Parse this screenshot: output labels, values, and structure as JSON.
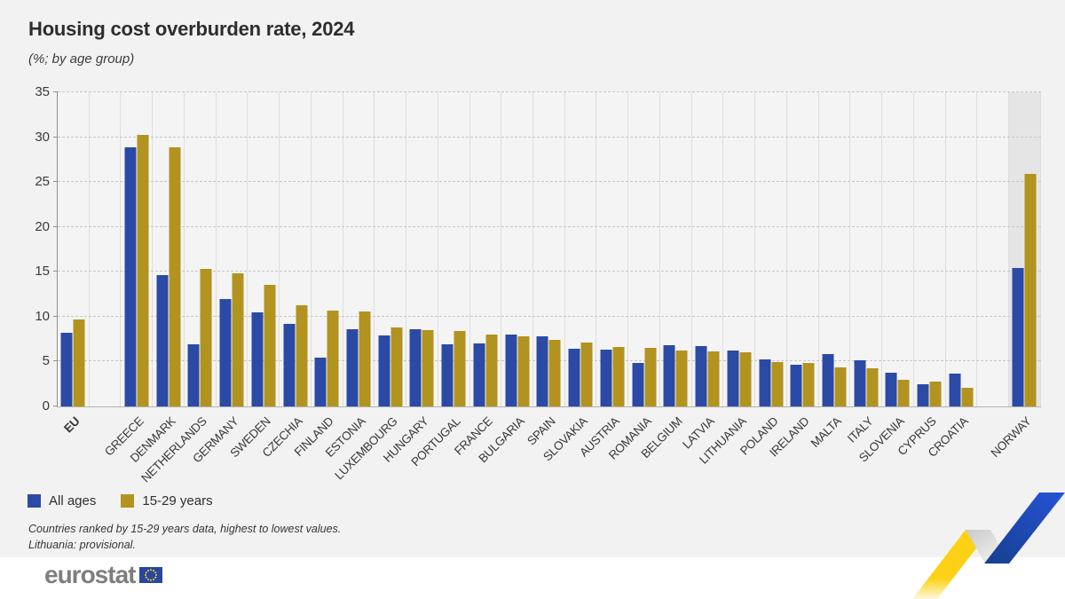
{
  "page": {
    "title": "Housing cost overburden rate, 2024",
    "subtitle": "(%; by age group)"
  },
  "legend": {
    "all_ages_label": "All ages",
    "young_label": "15-29 years"
  },
  "footnotes": {
    "line1": "Countries ranked by 15-29 years data, highest to lowest values.",
    "line2": "Lithuania: provisional."
  },
  "logo": {
    "text": "eurostat"
  },
  "colors": {
    "all_ages": "#2b4aa5",
    "young": "#b2931f",
    "page_bg": "#f2f2f2",
    "plot_bg": "#f4f4f4",
    "highlight_band": "#e5e5e5",
    "ribbon_yellow": "#fcd116",
    "ribbon_blue": "#1f49c0",
    "flag_blue": "#29479f",
    "flag_stars": "#ffd617"
  },
  "chart_data": {
    "type": "bar",
    "title": "Housing cost overburden rate, 2024",
    "subtitle": "(%; by age group)",
    "ylabel": "",
    "xlabel": "",
    "ylim": [
      0,
      35
    ],
    "yticks": [
      0,
      5,
      10,
      15,
      20,
      25,
      30,
      35
    ],
    "grid": "horizontal-dashed",
    "legend_position": "bottom-left",
    "highlight_category": "NORWAY",
    "spacer_after": [
      "EU",
      "CROATIA"
    ],
    "categories": [
      "EU",
      "GREECE",
      "DENMARK",
      "NETHERLANDS",
      "GERMANY",
      "SWEDEN",
      "CZECHIA",
      "FINLAND",
      "ESTONIA",
      "LUXEMBOURG",
      "HUNGARY",
      "PORTUGAL",
      "FRANCE",
      "BULGARIA",
      "SPAIN",
      "SLOVAKIA",
      "AUSTRIA",
      "ROMANIA",
      "BELGIUM",
      "LATVIA",
      "LITHUANIA",
      "POLAND",
      "IRELAND",
      "MALTA",
      "ITALY",
      "SLOVENIA",
      "CYPRUS",
      "CROATIA",
      "NORWAY"
    ],
    "series": [
      {
        "name": "All ages",
        "color": "#2b4aa5",
        "values": [
          8.2,
          28.9,
          14.6,
          6.9,
          12.0,
          10.5,
          9.2,
          5.4,
          8.6,
          7.9,
          8.6,
          6.9,
          7.0,
          8.0,
          7.8,
          6.4,
          6.3,
          4.8,
          6.8,
          6.7,
          6.2,
          5.2,
          4.6,
          5.8,
          5.1,
          3.8,
          2.5,
          3.7,
          15.4
        ]
      },
      {
        "name": "15-29 years",
        "color": "#b2931f",
        "values": [
          9.7,
          30.3,
          28.9,
          15.3,
          14.8,
          13.5,
          11.3,
          10.7,
          10.6,
          8.8,
          8.5,
          8.4,
          8.0,
          7.8,
          7.4,
          7.1,
          6.6,
          6.5,
          6.2,
          6.1,
          6.0,
          4.9,
          4.8,
          4.4,
          4.3,
          3.0,
          2.8,
          2.1,
          25.9
        ]
      }
    ]
  }
}
